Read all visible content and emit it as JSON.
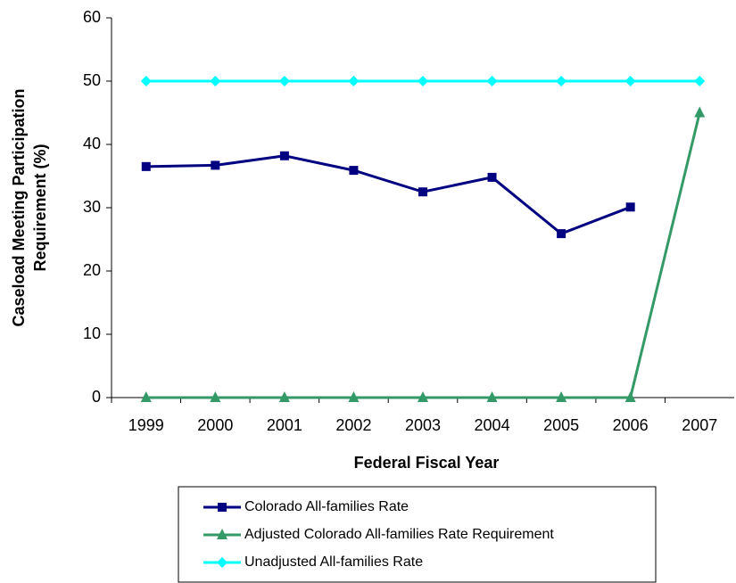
{
  "chart_data": {
    "type": "line",
    "y_label": [
      "Caseload Meeting Participation",
      "Requirement (%)"
    ],
    "x_label": "Federal Fiscal Year",
    "categories": [
      "1999",
      "2000",
      "2001",
      "2002",
      "2003",
      "2004",
      "2005",
      "2006",
      "2007"
    ],
    "series": [
      {
        "name": "Colorado All-families Rate",
        "color": "#000080",
        "marker": "square",
        "values": [
          36.5,
          36.7,
          38.2,
          35.9,
          32.5,
          34.8,
          25.9,
          30.1,
          null
        ]
      },
      {
        "name": "Adjusted Colorado All-families Rate Requirement",
        "color": "#339966",
        "marker": "triangle",
        "values": [
          0,
          0,
          0,
          0,
          0,
          0,
          0,
          0,
          45
        ]
      },
      {
        "name": "Unadjusted All-families Rate",
        "color": "#00ffff",
        "marker": "diamond",
        "values": [
          50,
          50,
          50,
          50,
          50,
          50,
          50,
          50,
          50
        ]
      }
    ],
    "ylim": [
      0,
      60
    ],
    "yticks": [
      0,
      10,
      20,
      30,
      40,
      50,
      60
    ],
    "grid": false,
    "legend": "bottom"
  }
}
